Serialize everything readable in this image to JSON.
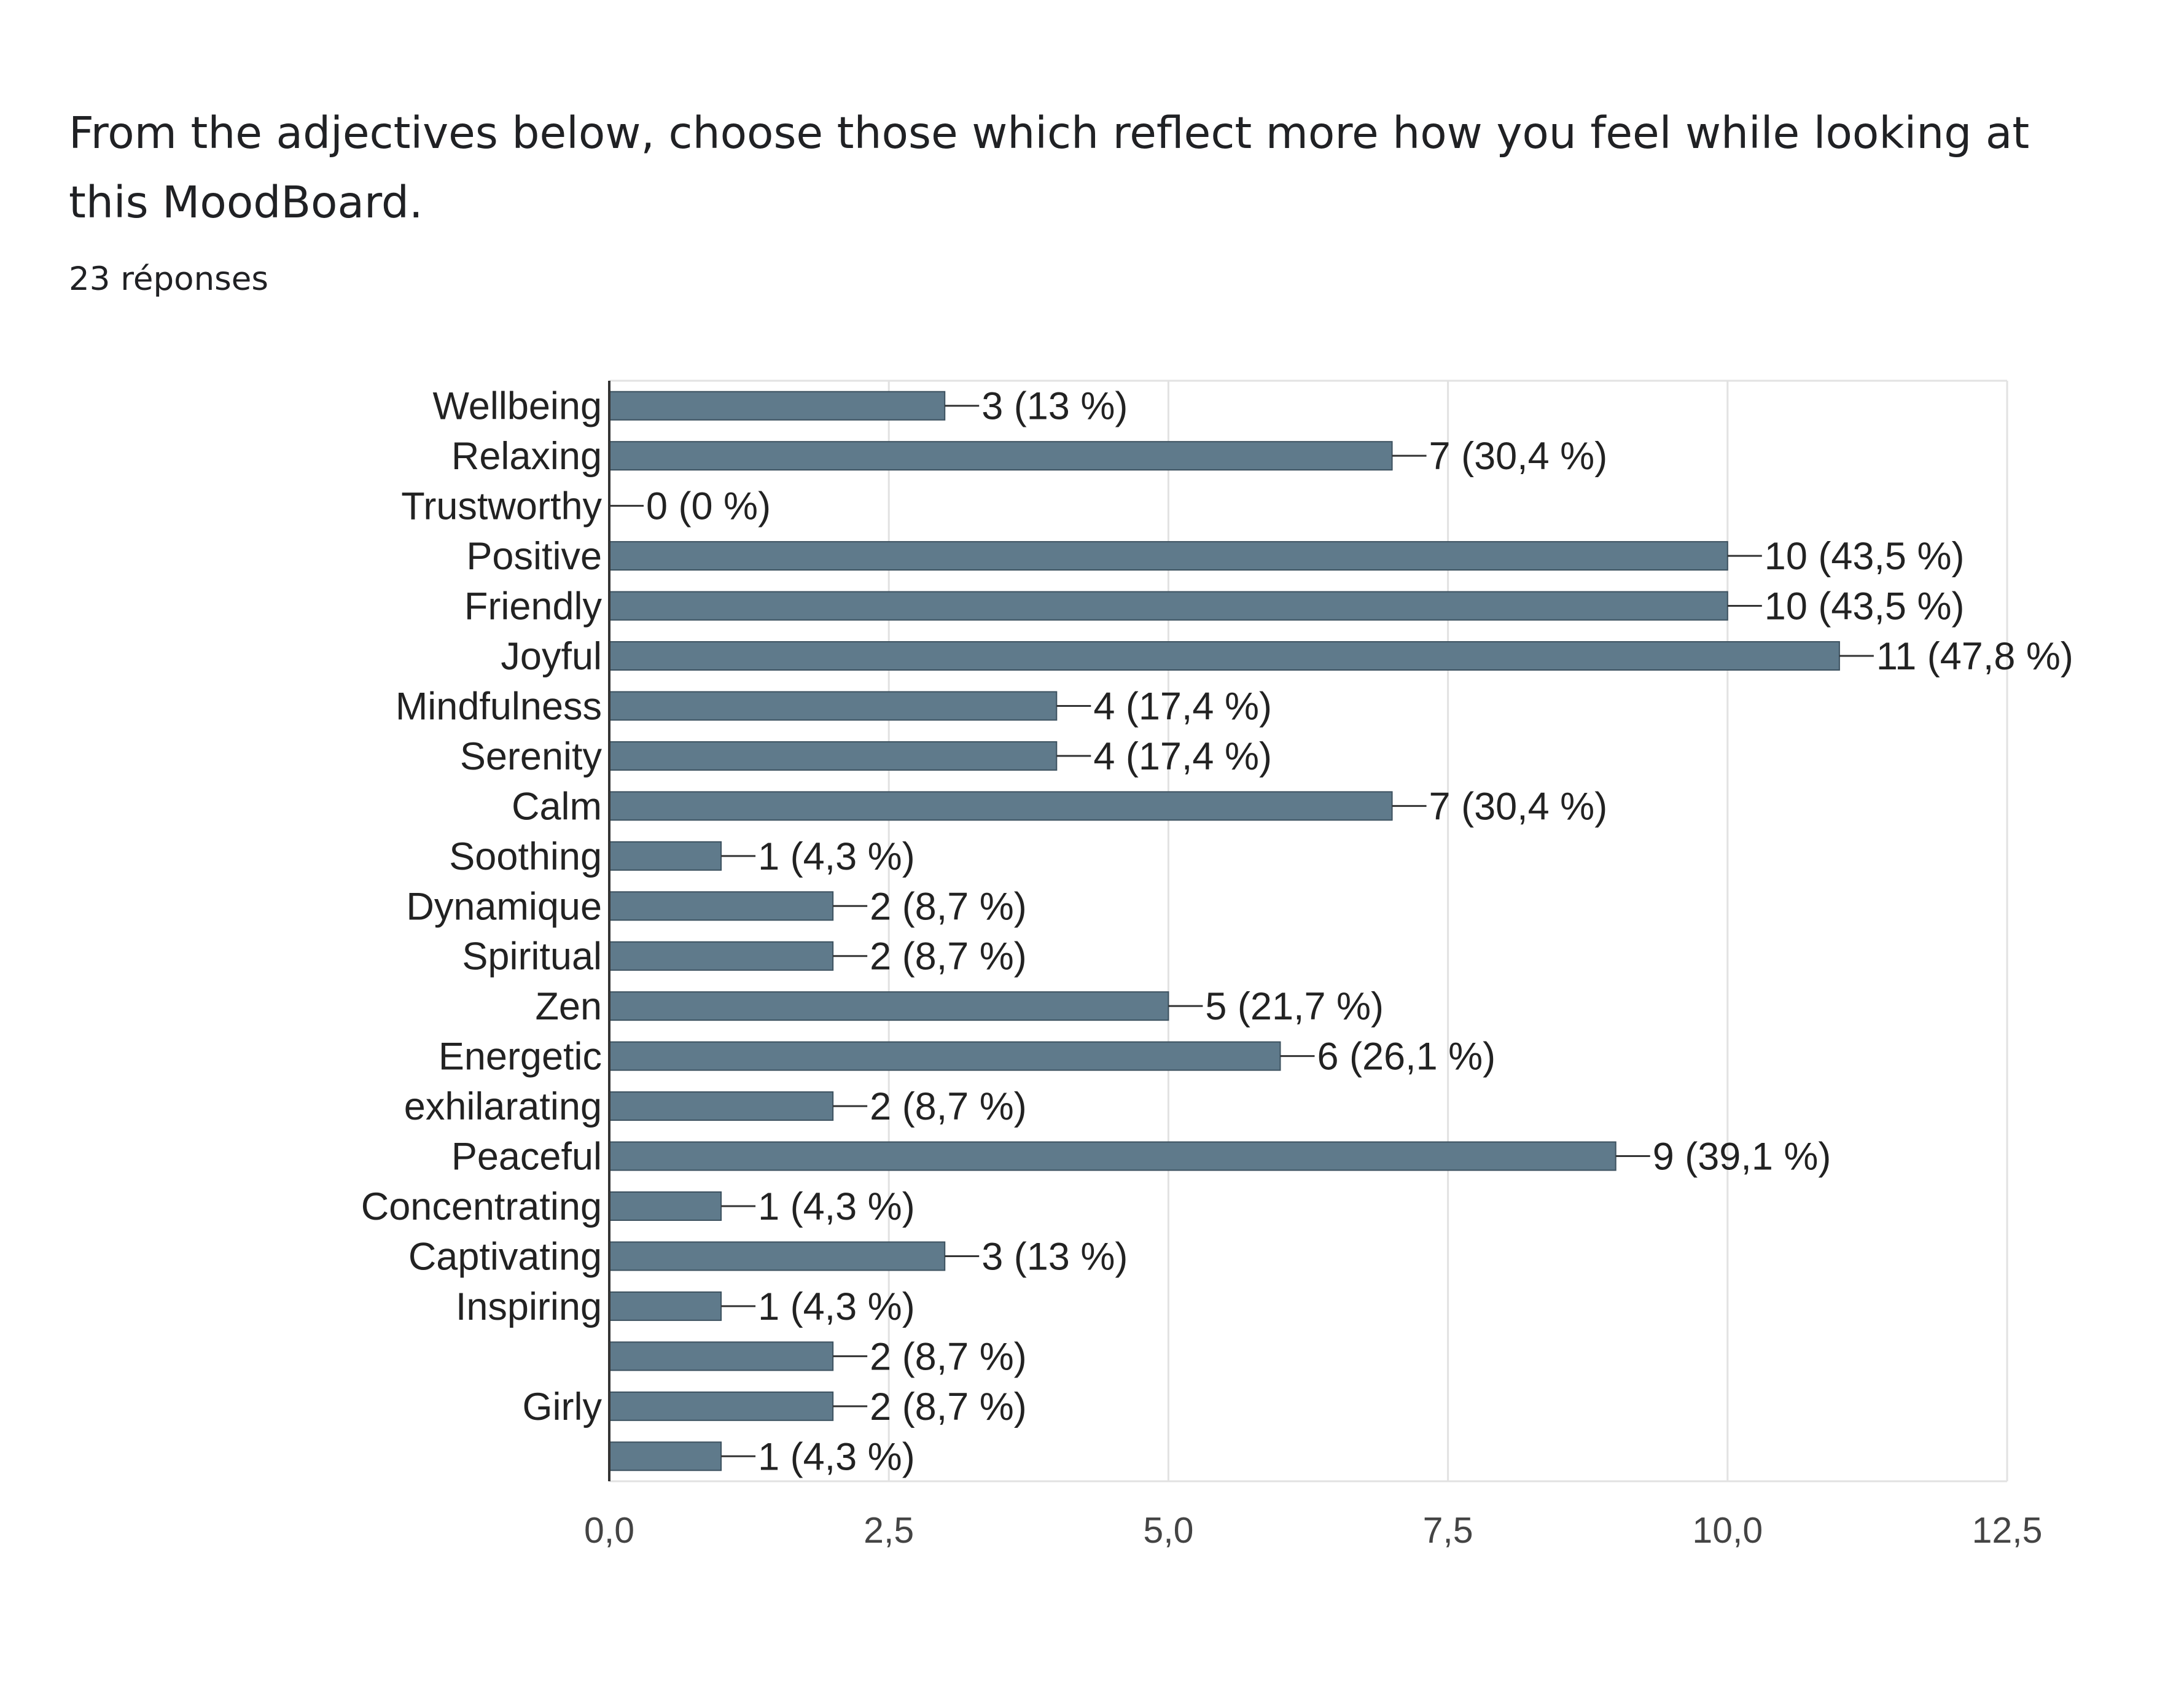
{
  "question": {
    "title": "From the adjectives below, choose those which reflect more how you feel while looking at this MoodBoard.",
    "responses": "23 réponses"
  },
  "colors": {
    "bar": "#5f7a8b",
    "grid": "#e2e2e2",
    "axis": "#333333"
  },
  "chart_data": {
    "type": "bar",
    "orientation": "horizontal",
    "categories": [
      "Wellbeing",
      "Relaxing",
      "Trustworthy",
      "Positive",
      "Friendly",
      "Joyful",
      "Mindfulness",
      "Serenity",
      "Calm",
      "Soothing",
      "Dynamique",
      "Spiritual",
      "Zen",
      "Energetic",
      "exhilarating",
      "Peaceful",
      "Concentrating",
      "Captivating",
      "Inspiring",
      "",
      "Girly",
      ""
    ],
    "values": [
      3,
      7,
      0,
      10,
      10,
      11,
      4,
      4,
      7,
      1,
      2,
      2,
      5,
      6,
      2,
      9,
      1,
      3,
      1,
      2,
      2,
      1
    ],
    "data_labels": [
      "3 (13 %)",
      "7 (30,4 %)",
      "0 (0 %)",
      "10 (43,5 %)",
      "10 (43,5 %)",
      "11 (47,8 %)",
      "4 (17,4 %)",
      "4 (17,4 %)",
      "7 (30,4 %)",
      "1 (4,3 %)",
      "2 (8,7 %)",
      "2 (8,7 %)",
      "5 (21,7 %)",
      "6 (26,1 %)",
      "2 (8,7 %)",
      "9 (39,1 %)",
      "1 (4,3 %)",
      "3 (13 %)",
      "1 (4,3 %)",
      "2 (8,7 %)",
      "2 (8,7 %)",
      "1 (4,3 %)"
    ],
    "xlim": [
      0,
      12.5
    ],
    "xticks": [
      0,
      2.5,
      5,
      7.5,
      10,
      12.5
    ],
    "xtick_labels": [
      "0,0",
      "2,5",
      "5,0",
      "7,5",
      "10,0",
      "12,5"
    ],
    "grid": true,
    "legend": "none"
  }
}
